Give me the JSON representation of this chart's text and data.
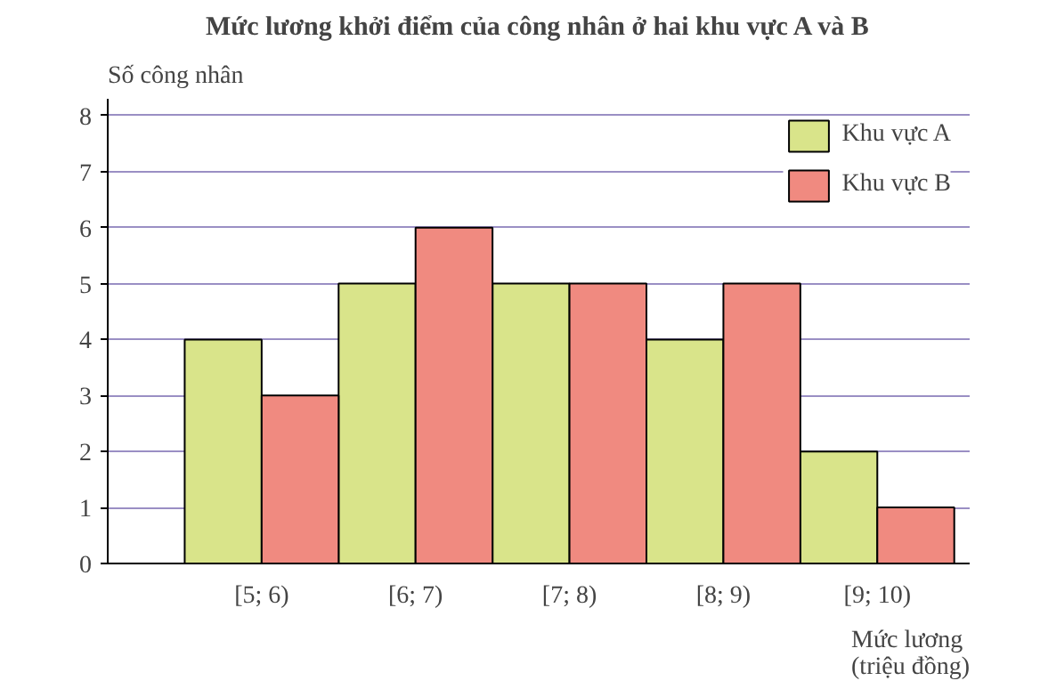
{
  "chart_data": {
    "type": "bar",
    "title": "Mức lương khởi điểm của công nhân ở hai khu vực A và B",
    "xlabel": "Mức lương\n(triệu đồng)",
    "ylabel": "Số công nhân",
    "categories": [
      "[5; 6)",
      "[6; 7)",
      "[7; 8)",
      "[8; 9)",
      "[9; 10)"
    ],
    "series": [
      {
        "name": "Khu vực A",
        "color": "#d9e48a",
        "values": [
          4,
          5,
          5,
          4,
          2
        ]
      },
      {
        "name": "Khu vực B",
        "color": "#f08a80",
        "values": [
          3,
          6,
          5,
          5,
          1
        ]
      }
    ],
    "ylim": [
      0,
      8
    ],
    "yticks": [
      0,
      1,
      2,
      3,
      4,
      5,
      6,
      7,
      8
    ],
    "grid": "y",
    "legend": "top right"
  }
}
